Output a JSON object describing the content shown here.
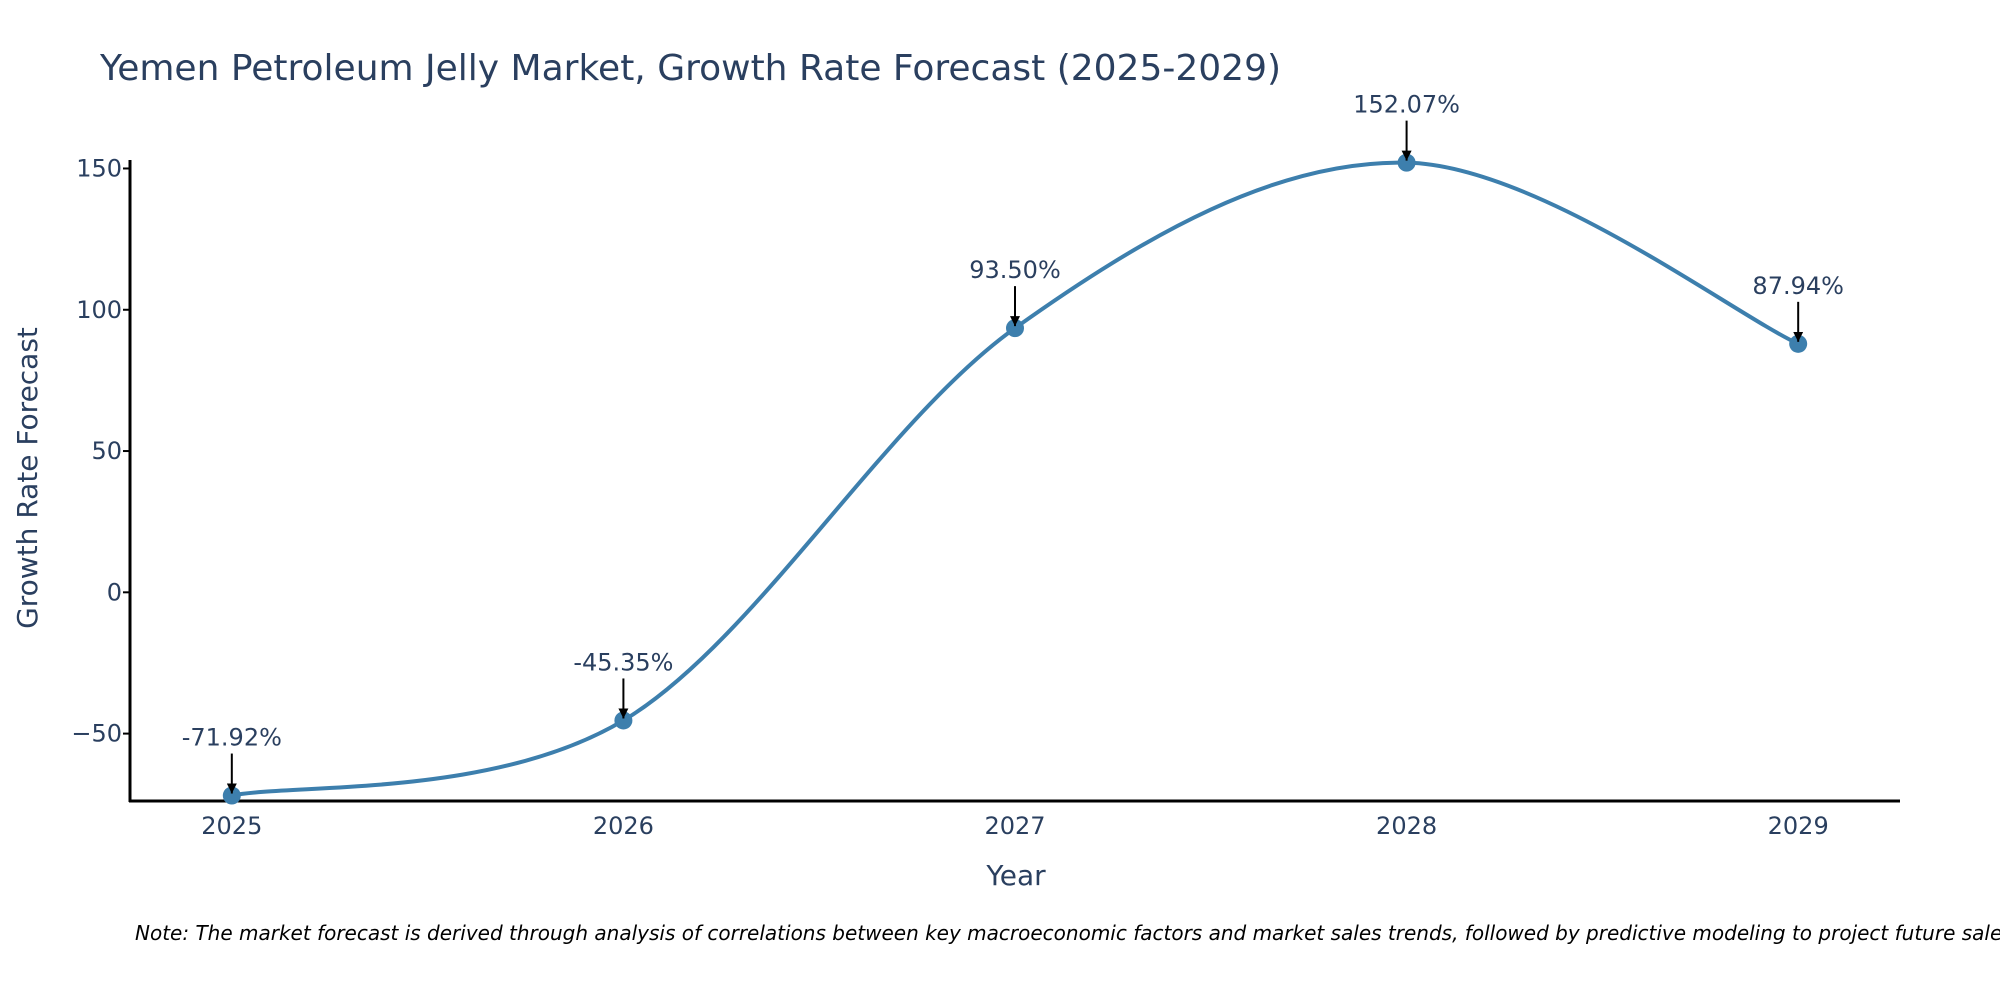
{
  "chart_data": {
    "type": "line",
    "title": "Yemen Petroleum Jelly Market, Growth Rate Forecast (2025-2029)",
    "xlabel": "Year",
    "ylabel": "Growth Rate Forecast",
    "categories": [
      "2025",
      "2026",
      "2027",
      "2028",
      "2029"
    ],
    "series": [
      {
        "name": "Growth Rate Forecast",
        "values": [
          -71.92,
          -45.35,
          93.5,
          152.07,
          87.94
        ],
        "labels": [
          "-71.92%",
          "-45.35%",
          "93.50%",
          "152.07%",
          "87.94%"
        ]
      }
    ],
    "yticks": [
      -50,
      0,
      50,
      100,
      150
    ],
    "ytick_labels": [
      "−50",
      "0",
      "50",
      "100",
      "150"
    ],
    "ylim": [
      -73.5,
      153
    ],
    "xlim": [
      2024.74,
      2029.26
    ],
    "line_color": "#3d7fad",
    "marker_color": "#3d7fad",
    "annotation_arrow_color": "#000000",
    "grid": false,
    "legend": "none",
    "note": "Note: The market forecast is derived through analysis of correlations between key macroeconomic factors and market sales trends, followed by predictive modeling to project future sales."
  }
}
